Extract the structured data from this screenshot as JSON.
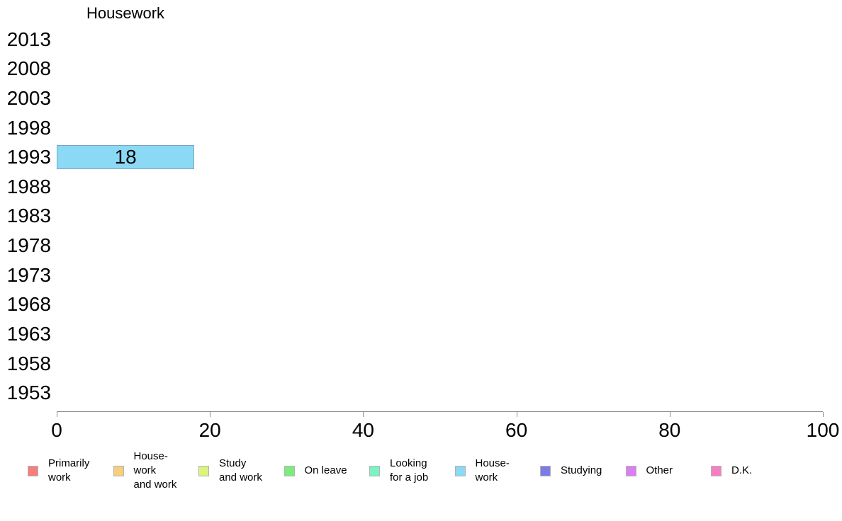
{
  "title": "Housework",
  "chart_data": {
    "type": "bar",
    "orientation": "horizontal",
    "title": "Housework",
    "categories": [
      "2013",
      "2008",
      "2003",
      "1998",
      "1993",
      "1988",
      "1983",
      "1978",
      "1973",
      "1968",
      "1963",
      "1958",
      "1953"
    ],
    "series": [
      {
        "name": "House-work",
        "values": [
          null,
          null,
          null,
          null,
          18,
          null,
          null,
          null,
          null,
          null,
          null,
          null,
          null
        ]
      }
    ],
    "bar_value_labels": [
      "",
      "",
      "",
      "",
      "18",
      "",
      "",
      "",
      "",
      "",
      "",
      "",
      ""
    ],
    "xlim": [
      0,
      100
    ],
    "xticks": [
      "0",
      "20",
      "40",
      "60",
      "80",
      "100"
    ],
    "grid": false,
    "legend_position": "bottom"
  },
  "colors": {
    "bar_fill": "#8bd9f5",
    "bar_border": "#7aa6bd",
    "axis_line": "#8c8c8c",
    "swatch_border": "#b3b3b3",
    "text": "#000000"
  },
  "legend": {
    "items": [
      {
        "name": "primarily-work",
        "label_lines": [
          "Primarily",
          "work"
        ],
        "color": "#f47f7f"
      },
      {
        "name": "housework-and-work",
        "label_lines": [
          "House-",
          "work",
          "and work"
        ],
        "color": "#f6ce7e"
      },
      {
        "name": "study-and-work",
        "label_lines": [
          "Study",
          "and work"
        ],
        "color": "#dcf37e"
      },
      {
        "name": "on-leave",
        "label_lines": [
          "On leave"
        ],
        "color": "#7cec7c"
      },
      {
        "name": "looking-for-a-job",
        "label_lines": [
          "Looking",
          "for a job"
        ],
        "color": "#7df2c3"
      },
      {
        "name": "housework",
        "label_lines": [
          "House-",
          "work"
        ],
        "color": "#8bd9f5"
      },
      {
        "name": "studying",
        "label_lines": [
          "Studying"
        ],
        "color": "#7b7ce6"
      },
      {
        "name": "other",
        "label_lines": [
          "Other"
        ],
        "color": "#d97ff2"
      },
      {
        "name": "dk",
        "label_lines": [
          "D.K."
        ],
        "color": "#f67fc2"
      }
    ]
  }
}
